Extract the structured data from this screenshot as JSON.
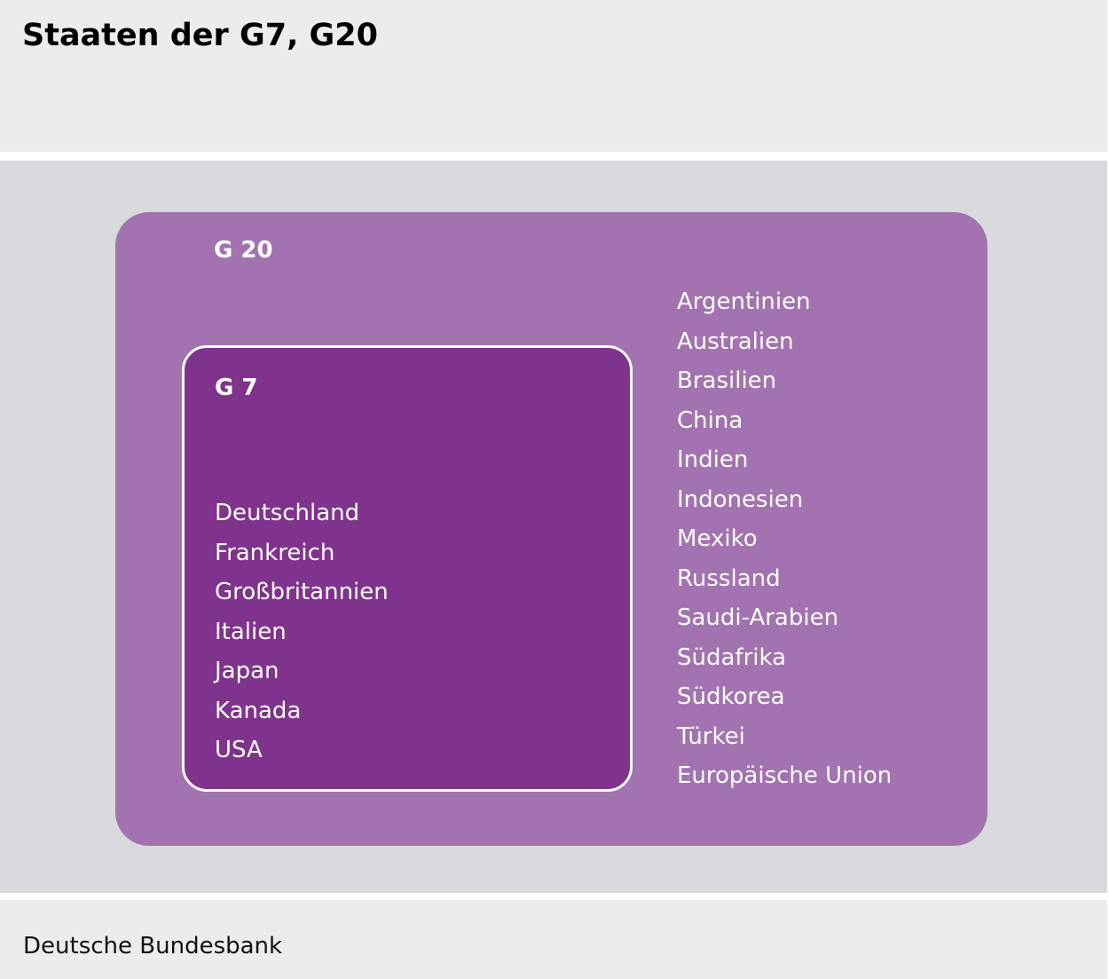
{
  "header": {
    "title": "Staaten der G7, G20"
  },
  "diagram": {
    "g20": {
      "label": "G 20",
      "members": [
        "Argentinien",
        "Australien",
        "Brasilien",
        "China",
        "Indien",
        "Indonesien",
        "Mexiko",
        "Russland",
        "Saudi-Arabien",
        "Südafrika",
        "Südkorea",
        "Türkei",
        "Europäische Union"
      ]
    },
    "g7": {
      "label": "G 7",
      "members": [
        "Deutschland",
        "Frankreich",
        "Großbritannien",
        "Italien",
        "Japan",
        "Kanada",
        "USA"
      ]
    }
  },
  "footer": {
    "source": "Deutsche Bundesbank"
  },
  "colors": {
    "header_bg": "#ececec",
    "main_bg": "#d9dadb",
    "g20_fill": "#a273b0",
    "g7_fill": "#80338c",
    "text_light": "#ffffff"
  }
}
